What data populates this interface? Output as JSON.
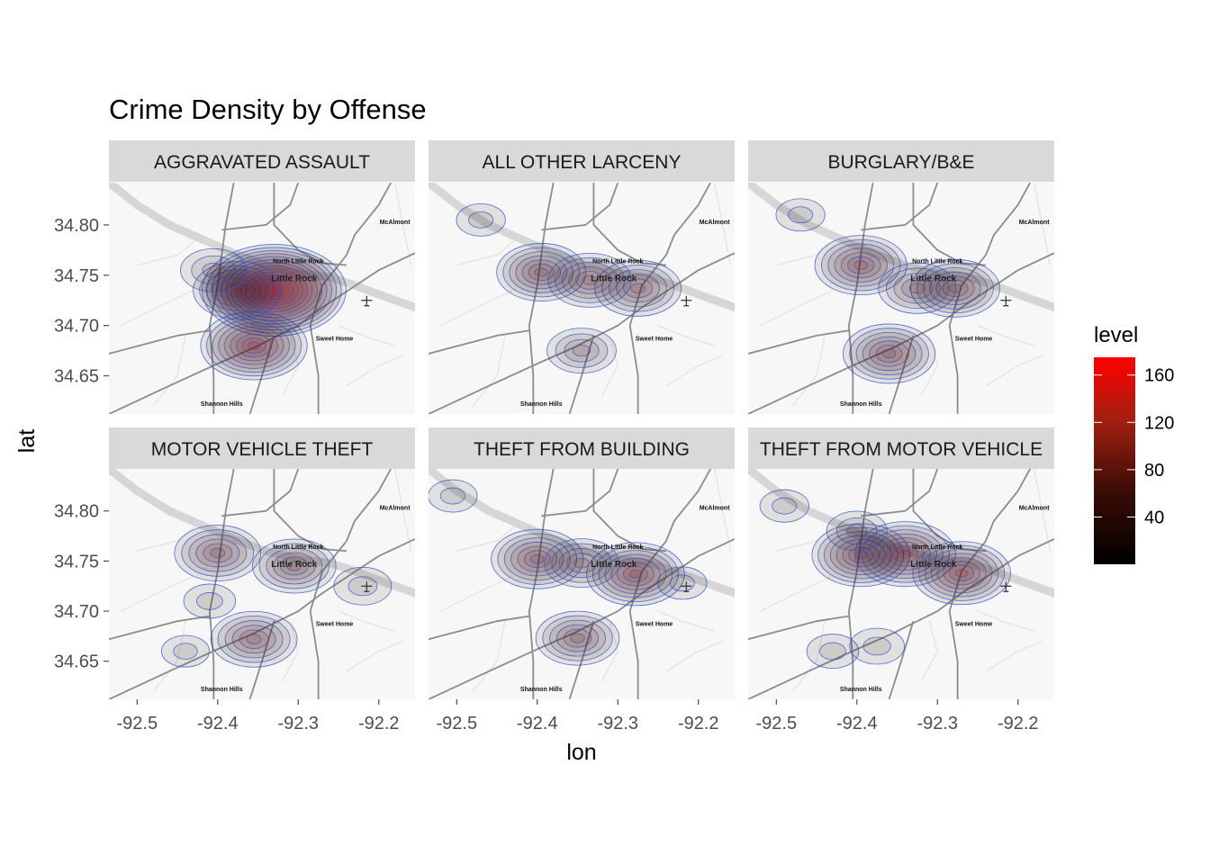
{
  "chart_data": {
    "type": "contour",
    "title": "Crime Density by Offense",
    "xlabel": "lon",
    "ylabel": "lat",
    "xlim": [
      -92.535,
      -92.155
    ],
    "ylim": [
      34.612,
      34.842
    ],
    "x_ticks": [
      "-92.5",
      "-92.4",
      "-92.3",
      "-92.2"
    ],
    "y_ticks": [
      "34.65",
      "34.70",
      "34.75",
      "34.80"
    ],
    "grid": false,
    "map_places": [
      {
        "name": "McAlmont",
        "lon": -92.18,
        "lat": 34.801
      },
      {
        "name": "North Little Rock",
        "lon": -92.3,
        "lat": 34.762
      },
      {
        "name": "Little Rock",
        "lon": -92.305,
        "lat": 34.744
      },
      {
        "name": "Sweet Home",
        "lon": -92.255,
        "lat": 34.685
      },
      {
        "name": "Shannon Hills",
        "lon": -92.395,
        "lat": 34.62
      }
    ],
    "legend": {
      "title": "level",
      "position": "right",
      "range": [
        0,
        175
      ],
      "ticks": [
        "40",
        "80",
        "120",
        "160"
      ],
      "colors": [
        "#000000",
        "#ff0000"
      ]
    },
    "contour_color": "#3355cc",
    "panels": [
      {
        "name": "AGGRAVATED ASSAULT",
        "hotspots": [
          {
            "lon": -92.33,
            "lat": 34.735,
            "peak": 175
          },
          {
            "lon": -92.355,
            "lat": 34.68,
            "peak": 110
          },
          {
            "lon": -92.375,
            "lat": 34.735,
            "peak": 80
          },
          {
            "lon": -92.405,
            "lat": 34.755,
            "peak": 40
          }
        ]
      },
      {
        "name": "ALL OTHER LARCENY",
        "hotspots": [
          {
            "lon": -92.395,
            "lat": 34.753,
            "peak": 80
          },
          {
            "lon": -92.275,
            "lat": 34.737,
            "peak": 75
          },
          {
            "lon": -92.335,
            "lat": 34.745,
            "peak": 70
          },
          {
            "lon": -92.345,
            "lat": 34.675,
            "peak": 45
          },
          {
            "lon": -92.47,
            "lat": 34.805,
            "peak": 10
          }
        ]
      },
      {
        "name": "BURGLARY/B&E",
        "hotspots": [
          {
            "lon": -92.395,
            "lat": 34.76,
            "peak": 85
          },
          {
            "lon": -92.36,
            "lat": 34.672,
            "peak": 85
          },
          {
            "lon": -92.278,
            "lat": 34.737,
            "peak": 80
          },
          {
            "lon": -92.325,
            "lat": 34.737,
            "peak": 60
          },
          {
            "lon": -92.47,
            "lat": 34.81,
            "peak": 10
          }
        ]
      },
      {
        "name": "MOTOR VEHICLE THEFT",
        "hotspots": [
          {
            "lon": -92.4,
            "lat": 34.758,
            "peak": 75
          },
          {
            "lon": -92.355,
            "lat": 34.672,
            "peak": 75
          },
          {
            "lon": -92.305,
            "lat": 34.745,
            "peak": 70
          },
          {
            "lon": -92.22,
            "lat": 34.725,
            "peak": 25
          },
          {
            "lon": -92.41,
            "lat": 34.71,
            "peak": 15
          },
          {
            "lon": -92.44,
            "lat": 34.66,
            "peak": 8
          }
        ]
      },
      {
        "name": "THEFT FROM BUILDING",
        "hotspots": [
          {
            "lon": -92.4,
            "lat": 34.752,
            "peak": 85
          },
          {
            "lon": -92.278,
            "lat": 34.737,
            "peak": 95
          },
          {
            "lon": -92.345,
            "lat": 34.748,
            "peak": 55
          },
          {
            "lon": -92.35,
            "lat": 34.673,
            "peak": 70
          },
          {
            "lon": -92.505,
            "lat": 34.815,
            "peak": 10
          },
          {
            "lon": -92.22,
            "lat": 34.728,
            "peak": 10
          }
        ]
      },
      {
        "name": "THEFT FROM MOTOR VEHICLE",
        "hotspots": [
          {
            "lon": -92.395,
            "lat": 34.756,
            "peak": 95
          },
          {
            "lon": -92.34,
            "lat": 34.757,
            "peak": 100
          },
          {
            "lon": -92.27,
            "lat": 34.738,
            "peak": 95
          },
          {
            "lon": -92.4,
            "lat": 34.78,
            "peak": 30
          },
          {
            "lon": -92.43,
            "lat": 34.66,
            "peak": 15
          },
          {
            "lon": -92.375,
            "lat": 34.665,
            "peak": 20
          },
          {
            "lon": -92.49,
            "lat": 34.805,
            "peak": 10
          }
        ]
      }
    ]
  }
}
